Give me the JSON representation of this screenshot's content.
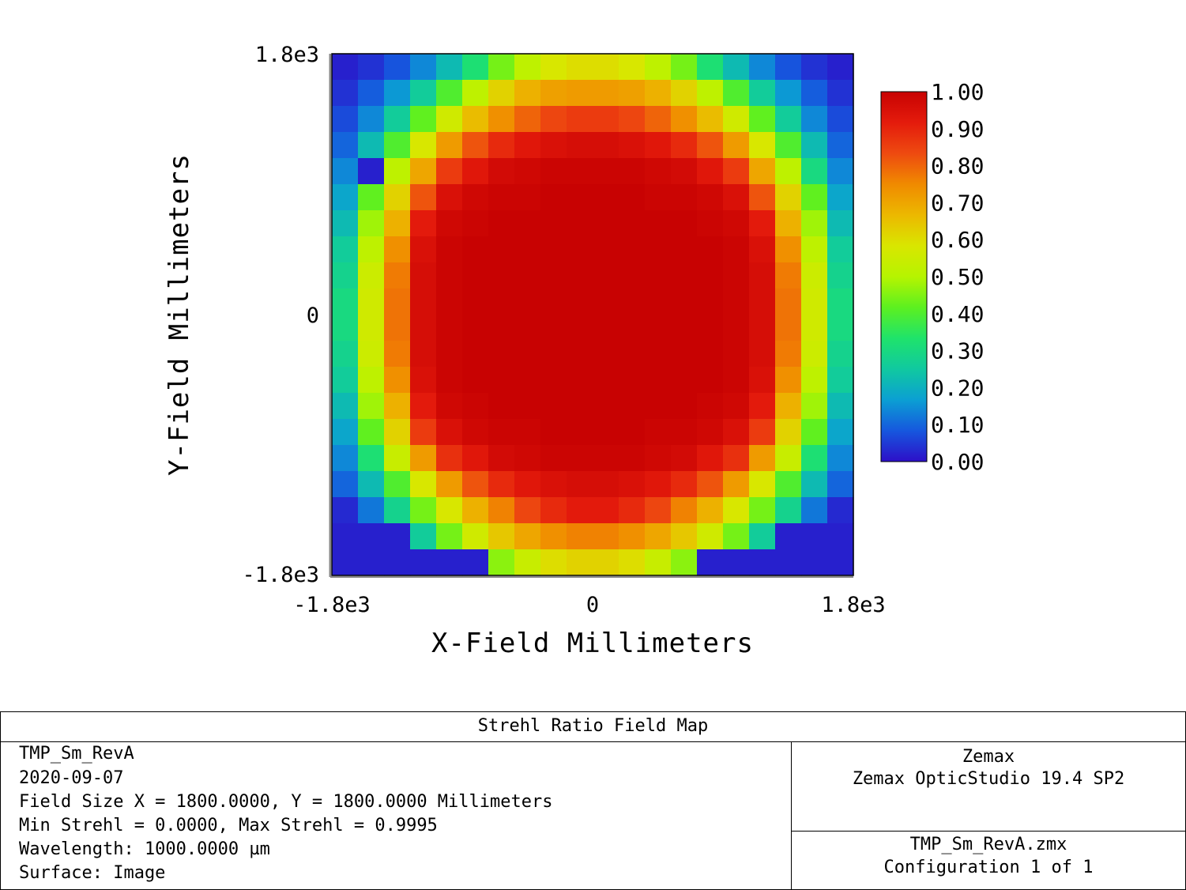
{
  "chart_data": {
    "type": "heatmap",
    "title": "Strehl Ratio Field Map",
    "xlabel": "X-Field Millimeters",
    "ylabel": "Y-Field Millimeters",
    "xlim": [
      -1800,
      1800
    ],
    "ylim": [
      -1800,
      1800
    ],
    "x_ticks": [
      "-1.8e3",
      "0",
      "1.8e3"
    ],
    "y_ticks": [
      "1.8e3",
      "0",
      "-1.8e3"
    ],
    "colorbar": {
      "min": 0.0,
      "max": 1.0,
      "ticks": [
        "1.00",
        "0.90",
        "0.80",
        "0.70",
        "0.60",
        "0.50",
        "0.40",
        "0.30",
        "0.20",
        "0.10",
        "0.00"
      ]
    },
    "colormap": [
      "#2d0fc8",
      "#1657de",
      "#0b9fd3",
      "#10c9a0",
      "#1fe36b",
      "#5cf020",
      "#b6f400",
      "#d9e600",
      "#ecb800",
      "#f08a00",
      "#ee4a10",
      "#e41b0c",
      "#c80202"
    ],
    "grid_rows": 20,
    "grid_cols": 20,
    "values": [
      [
        0.02,
        0.04,
        0.08,
        0.14,
        0.22,
        0.32,
        0.44,
        0.52,
        0.58,
        0.6,
        0.6,
        0.58,
        0.52,
        0.44,
        0.32,
        0.22,
        0.14,
        0.08,
        0.04,
        0.02
      ],
      [
        0.04,
        0.09,
        0.16,
        0.26,
        0.4,
        0.52,
        0.62,
        0.68,
        0.71,
        0.72,
        0.72,
        0.71,
        0.68,
        0.62,
        0.52,
        0.4,
        0.26,
        0.16,
        0.09,
        0.04
      ],
      [
        0.07,
        0.14,
        0.26,
        0.42,
        0.56,
        0.66,
        0.74,
        0.8,
        0.84,
        0.86,
        0.86,
        0.84,
        0.8,
        0.74,
        0.66,
        0.56,
        0.42,
        0.26,
        0.14,
        0.07
      ],
      [
        0.1,
        0.22,
        0.4,
        0.58,
        0.72,
        0.82,
        0.89,
        0.93,
        0.95,
        0.96,
        0.96,
        0.95,
        0.93,
        0.89,
        0.82,
        0.72,
        0.58,
        0.4,
        0.22,
        0.1
      ],
      [
        0.14,
        0.02,
        0.52,
        0.7,
        0.86,
        0.93,
        0.97,
        0.98,
        0.99,
        0.99,
        0.99,
        0.99,
        0.98,
        0.97,
        0.93,
        0.86,
        0.7,
        0.52,
        0.3,
        0.14
      ],
      [
        0.18,
        0.42,
        0.62,
        0.82,
        0.95,
        0.98,
        0.99,
        0.99,
        1.0,
        1.0,
        1.0,
        1.0,
        0.99,
        0.99,
        0.98,
        0.95,
        0.82,
        0.62,
        0.42,
        0.18
      ],
      [
        0.22,
        0.48,
        0.68,
        0.92,
        0.98,
        0.99,
        1.0,
        1.0,
        1.0,
        1.0,
        1.0,
        1.0,
        1.0,
        1.0,
        0.99,
        0.98,
        0.92,
        0.68,
        0.48,
        0.22
      ],
      [
        0.26,
        0.52,
        0.74,
        0.95,
        0.99,
        1.0,
        1.0,
        1.0,
        1.0,
        1.0,
        1.0,
        1.0,
        1.0,
        1.0,
        1.0,
        0.99,
        0.95,
        0.74,
        0.52,
        0.26
      ],
      [
        0.28,
        0.55,
        0.77,
        0.96,
        0.99,
        1.0,
        1.0,
        1.0,
        1.0,
        1.0,
        1.0,
        1.0,
        1.0,
        1.0,
        1.0,
        0.99,
        0.96,
        0.77,
        0.55,
        0.28
      ],
      [
        0.3,
        0.56,
        0.78,
        0.96,
        0.99,
        1.0,
        1.0,
        1.0,
        1.0,
        1.0,
        1.0,
        1.0,
        1.0,
        1.0,
        1.0,
        0.99,
        0.96,
        0.78,
        0.56,
        0.3
      ],
      [
        0.3,
        0.56,
        0.78,
        0.96,
        0.99,
        1.0,
        1.0,
        1.0,
        1.0,
        1.0,
        1.0,
        1.0,
        1.0,
        1.0,
        1.0,
        0.99,
        0.96,
        0.78,
        0.56,
        0.3
      ],
      [
        0.28,
        0.55,
        0.77,
        0.96,
        0.99,
        1.0,
        1.0,
        1.0,
        1.0,
        1.0,
        1.0,
        1.0,
        1.0,
        1.0,
        1.0,
        0.99,
        0.96,
        0.77,
        0.55,
        0.28
      ],
      [
        0.26,
        0.52,
        0.74,
        0.95,
        0.99,
        1.0,
        1.0,
        1.0,
        1.0,
        1.0,
        1.0,
        1.0,
        1.0,
        1.0,
        1.0,
        0.99,
        0.95,
        0.74,
        0.52,
        0.26
      ],
      [
        0.22,
        0.48,
        0.68,
        0.92,
        0.98,
        0.99,
        1.0,
        1.0,
        1.0,
        1.0,
        1.0,
        1.0,
        1.0,
        1.0,
        0.99,
        0.98,
        0.92,
        0.68,
        0.48,
        0.22
      ],
      [
        0.18,
        0.42,
        0.62,
        0.86,
        0.95,
        0.98,
        0.99,
        0.99,
        1.0,
        1.0,
        1.0,
        1.0,
        0.99,
        0.99,
        0.98,
        0.95,
        0.86,
        0.62,
        0.42,
        0.18
      ],
      [
        0.14,
        0.32,
        0.54,
        0.72,
        0.88,
        0.93,
        0.97,
        0.98,
        0.99,
        0.99,
        0.99,
        0.99,
        0.98,
        0.97,
        0.93,
        0.88,
        0.72,
        0.54,
        0.32,
        0.14
      ],
      [
        0.1,
        0.22,
        0.4,
        0.58,
        0.72,
        0.82,
        0.89,
        0.93,
        0.95,
        0.96,
        0.96,
        0.95,
        0.93,
        0.89,
        0.82,
        0.72,
        0.58,
        0.4,
        0.22,
        0.1
      ],
      [
        0.03,
        0.12,
        0.28,
        0.44,
        0.58,
        0.68,
        0.76,
        0.84,
        0.89,
        0.92,
        0.92,
        0.89,
        0.84,
        0.76,
        0.68,
        0.58,
        0.44,
        0.28,
        0.12,
        0.03
      ],
      [
        0.02,
        0.02,
        0.02,
        0.26,
        0.44,
        0.56,
        0.64,
        0.7,
        0.74,
        0.76,
        0.76,
        0.74,
        0.7,
        0.64,
        0.56,
        0.44,
        0.26,
        0.02,
        0.02,
        0.02
      ],
      [
        0.02,
        0.02,
        0.02,
        0.02,
        0.02,
        0.02,
        0.46,
        0.54,
        0.6,
        0.62,
        0.62,
        0.6,
        0.54,
        0.46,
        0.02,
        0.02,
        0.02,
        0.02,
        0.02,
        0.02
      ]
    ]
  },
  "info": {
    "title": "Strehl Ratio Field Map",
    "lines": [
      "TMP_Sm_RevA",
      "2020-09-07",
      "Field Size X = 1800.0000, Y = 1800.0000 Millimeters",
      "Min Strehl = 0.0000, Max Strehl = 0.9995",
      "Wavelength: 1000.0000 µm",
      "Surface: Image"
    ],
    "company": "Zemax",
    "product": "Zemax OpticStudio 19.4 SP2",
    "file": "TMP_Sm_RevA.zmx",
    "config": "Configuration 1 of 1"
  }
}
